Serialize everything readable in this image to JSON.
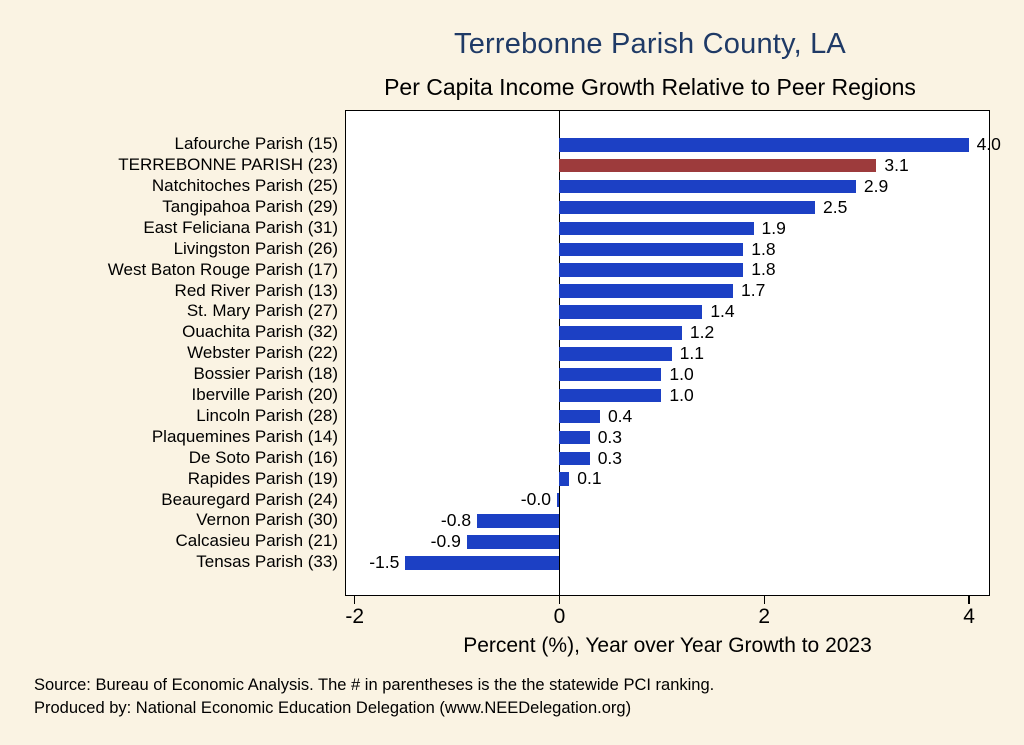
{
  "title": "Terrebonne Parish County, LA",
  "subtitle": "Per Capita Income Growth Relative to Peer Regions",
  "chart_data": {
    "type": "bar",
    "orientation": "horizontal",
    "title": "Terrebonne Parish County, LA",
    "subtitle": "Per Capita Income Growth Relative to Peer Regions",
    "categories": [
      "Lafourche Parish (15)",
      "TERREBONNE PARISH (23)",
      "Natchitoches Parish (25)",
      "Tangipahoa Parish (29)",
      "East Feliciana Parish (31)",
      "Livingston Parish (26)",
      "West Baton Rouge Parish (17)",
      "Red River Parish (13)",
      "St. Mary Parish (27)",
      "Ouachita Parish (32)",
      "Webster Parish (22)",
      "Bossier Parish (18)",
      "Iberville Parish (20)",
      "Lincoln Parish (28)",
      "Plaquemines Parish (14)",
      "De Soto Parish (16)",
      "Rapides Parish (19)",
      "Beauregard Parish (24)",
      "Vernon Parish (30)",
      "Calcasieu Parish (21)",
      "Tensas Parish (33)"
    ],
    "values": [
      4.0,
      3.1,
      2.9,
      2.5,
      1.9,
      1.8,
      1.8,
      1.7,
      1.4,
      1.2,
      1.1,
      1.0,
      1.0,
      0.4,
      0.3,
      0.3,
      0.1,
      -0.02,
      -0.8,
      -0.9,
      -1.5
    ],
    "value_labels": [
      "4.0",
      "3.1",
      "2.9",
      "2.5",
      "1.9",
      "1.8",
      "1.8",
      "1.7",
      "1.4",
      "1.2",
      "1.1",
      "1.0",
      "1.0",
      "0.4",
      "0.3",
      "0.3",
      "0.1",
      "-0.0",
      "-0.8",
      "-0.9",
      "-1.5"
    ],
    "highlight_index": 1,
    "bar_color": "#1c40c4",
    "highlight_color": "#9d3b3c",
    "xlabel": "Percent (%), Year over Year Growth to 2023",
    "xticks": [
      "-2",
      "0",
      "2",
      "4"
    ],
    "xtick_values": [
      -2,
      0,
      2,
      4
    ],
    "xlim": [
      -2.08,
      4.18
    ],
    "grid": false,
    "legend": "none"
  },
  "footer": {
    "line1": "Source: Bureau of Economic Analysis. The # in parentheses is the the statewide PCI ranking.",
    "line2": "Produced by: National Economic Education Delegation (www.NEEDelegation.org)"
  }
}
